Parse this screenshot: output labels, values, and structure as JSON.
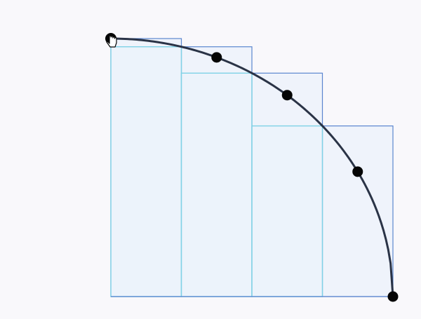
{
  "diagram": {
    "function": "quarter-circle",
    "domain": [
      0,
      1
    ],
    "range": [
      0,
      1
    ],
    "partition": [
      0,
      0.25,
      0.5,
      0.75,
      1
    ],
    "sample_points": [
      0,
      0.375,
      0.625,
      0.875,
      1
    ],
    "upper_sum_heights": [
      1,
      0.9682,
      0.866,
      0.6614
    ],
    "lower_sum_heights": [
      0.9682,
      0.866,
      0.6614,
      0
    ],
    "draggable_handle": "hand-pointer-icon",
    "colors": {
      "background": "#f9f8fb",
      "upper_rect_stroke": "#5b86cf",
      "lower_rect_stroke": "#7fd2e6",
      "curve": "#2a3346",
      "points": "#050505"
    }
  }
}
